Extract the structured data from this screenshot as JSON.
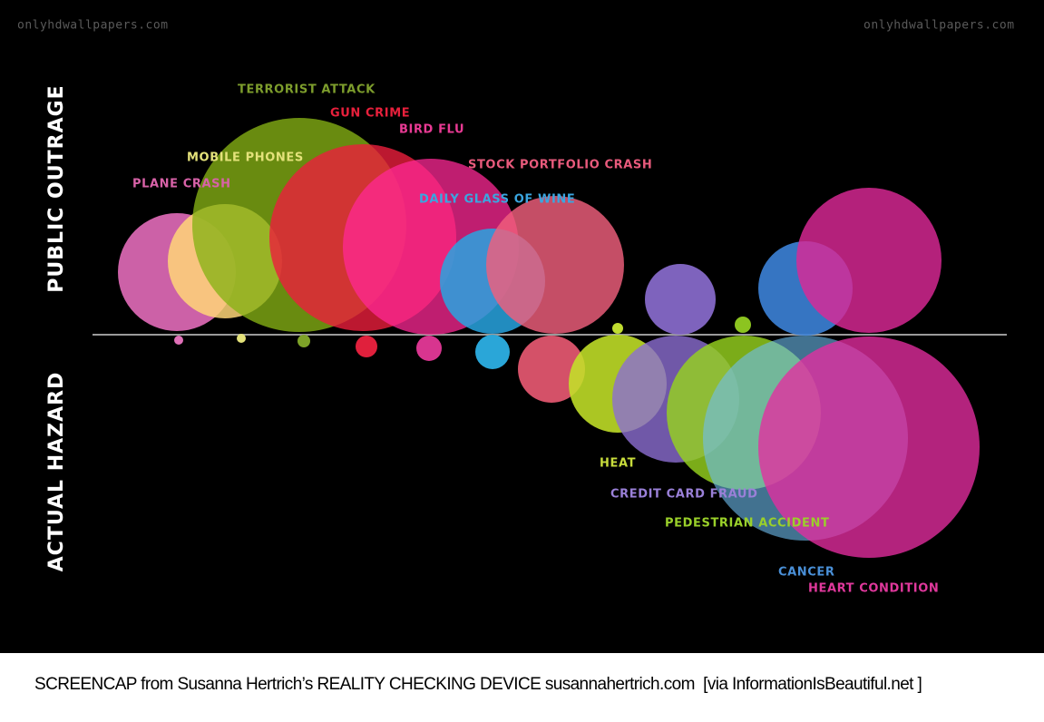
{
  "watermarks": [
    "onlyhdwallpapers.com",
    "onlyhdwallpapers.com"
  ],
  "axis_labels": {
    "top": "PUBLIC OUTRAGE",
    "bottom": "ACTUAL HAZARD"
  },
  "items": [
    {
      "label": "PLANE CRASH"
    },
    {
      "label": "MOBILE PHONES"
    },
    {
      "label": "TERRORIST ATTACK"
    },
    {
      "label": "GUN CRIME"
    },
    {
      "label": "BIRD FLU"
    },
    {
      "label": "DAILY GLASS OF WINE"
    },
    {
      "label": "STOCK PORTFOLIO CRASH"
    },
    {
      "label": "HEAT"
    },
    {
      "label": "CREDIT CARD FRAUD"
    },
    {
      "label": "PEDESTRIAN ACCIDENT"
    },
    {
      "label": "CANCER"
    },
    {
      "label": "HEART CONDITION"
    }
  ],
  "caption": "SCREENCAP from Susanna Hertrich’s REALITY CHECKING DEVICE susannahertrich.com  [via InformationIsBeautiful.net ]"
}
